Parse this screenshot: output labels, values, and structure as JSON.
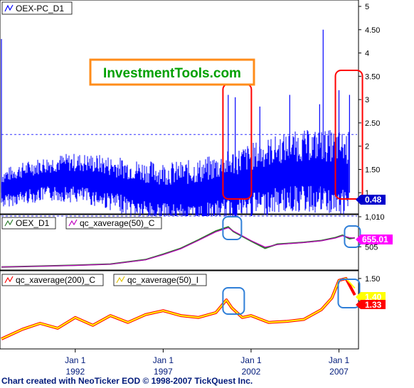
{
  "footer": "Chart created with NeoTicker EOD © 1998-2007 TickQuest Inc.",
  "watermark": "InvestmentTools.com",
  "colors": {
    "pcr": "#0000ff",
    "oex": "#2a7a2a",
    "oex_ma": "#c000c0",
    "ma200": "#ff0000",
    "ma50": "#ffff00",
    "highlight_red": "#ff0000",
    "highlight_blue": "#2f7fd8",
    "watermark_border": "#ff8c1a",
    "watermark_text": "#00a000"
  },
  "chart_data": [
    {
      "type": "line",
      "panel": "top",
      "legend": [
        "OEX-PC_D1"
      ],
      "y_ticks": [
        "5",
        "4.50",
        "4",
        "3.50",
        "3",
        "2.50",
        "2",
        "1.50",
        "1"
      ],
      "ylim": [
        0.5,
        5
      ],
      "reference_lines": [
        2.25,
        0.5
      ],
      "last_value_label": "0.48",
      "series": [
        {
          "name": "OEX-PC_D1",
          "range_band": [
            0.5,
            2.5
          ],
          "spikes": [
            {
              "x": 1987.8,
              "y": 4.3
            },
            {
              "x": 2000.7,
              "y": 3.1
            },
            {
              "x": 2001.1,
              "y": 3.05
            },
            {
              "x": 2002.5,
              "y": 2.85
            },
            {
              "x": 2004.2,
              "y": 3.1
            },
            {
              "x": 2005.9,
              "y": 2.9
            },
            {
              "x": 2006.1,
              "y": 4.5
            },
            {
              "x": 2007.0,
              "y": 3.2
            },
            {
              "x": 2007.6,
              "y": 3.1
            }
          ]
        }
      ]
    },
    {
      "type": "line",
      "panel": "middle",
      "legend": [
        "OEX_D1",
        "qc_xaverage(50)_C"
      ],
      "y_ticks": [
        "1,010",
        "505"
      ],
      "ylim": [
        150,
        1010
      ],
      "last_value_label": "655.01",
      "series": [
        {
          "name": "OEX_D1",
          "x": [
            1987.8,
            1990,
            1992,
            1994,
            1996,
            1997,
            1998,
            1999,
            2000,
            2000.7,
            2001,
            2001.5,
            2002,
            2002.8,
            2003.5,
            2004,
            2005,
            2006,
            2006.8,
            2007.2,
            2007.6,
            2007.9
          ],
          "y": [
            165,
            180,
            195,
            215,
            290,
            380,
            480,
            620,
            770,
            840,
            760,
            680,
            600,
            480,
            550,
            560,
            580,
            610,
            660,
            700,
            640,
            655
          ]
        },
        {
          "name": "qc_xaverage(50)_C",
          "x": [
            1987.8,
            1990,
            1992,
            1994,
            1996,
            1997,
            1998,
            1999,
            2000,
            2000.7,
            2001,
            2001.5,
            2002,
            2002.8,
            2003.5,
            2004,
            2005,
            2006,
            2006.8,
            2007.2,
            2007.6,
            2007.9
          ],
          "y": [
            165,
            178,
            192,
            212,
            285,
            372,
            470,
            610,
            755,
            825,
            770,
            690,
            610,
            500,
            540,
            555,
            575,
            605,
            650,
            690,
            660,
            650
          ]
        }
      ]
    },
    {
      "type": "line",
      "panel": "bottom",
      "legend": [
        "qc_xaverage(200)_C",
        "qc_xaverage(50)_I"
      ],
      "y_ticks": [
        "1.50"
      ],
      "ylim": [
        0.8,
        1.55
      ],
      "last_value_labels": [
        "1.40",
        "1.33"
      ],
      "series": [
        {
          "name": "qc_xaverage(200)_C",
          "x": [
            1987.8,
            1989,
            1990,
            1991,
            1992,
            1993,
            1994,
            1995,
            1996,
            1997,
            1998,
            1999,
            2000,
            2000.6,
            2000.9,
            2001.5,
            2002,
            2003,
            2004,
            2005,
            2006,
            2006.6,
            2007,
            2007.4,
            2007.9
          ],
          "y": [
            0.88,
            0.98,
            1.04,
            0.99,
            1.1,
            1.02,
            1.12,
            1.05,
            1.13,
            1.17,
            1.12,
            1.1,
            1.15,
            1.28,
            1.2,
            1.1,
            1.12,
            1.05,
            1.06,
            1.08,
            1.18,
            1.3,
            1.48,
            1.5,
            1.33
          ]
        },
        {
          "name": "qc_xaverage(50)_I",
          "x": [
            1987.8,
            1989,
            1990,
            1991,
            1992,
            1993,
            1994,
            1995,
            1996,
            1997,
            1998,
            1999,
            2000,
            2000.6,
            2000.9,
            2001.5,
            2002,
            2003,
            2004,
            2005,
            2006,
            2006.6,
            2007,
            2007.4,
            2007.9
          ],
          "y": [
            0.88,
            0.98,
            1.04,
            0.99,
            1.1,
            1.02,
            1.12,
            1.05,
            1.13,
            1.17,
            1.12,
            1.1,
            1.15,
            1.28,
            1.2,
            1.1,
            1.12,
            1.05,
            1.06,
            1.08,
            1.18,
            1.3,
            1.48,
            1.5,
            1.4
          ]
        }
      ]
    }
  ],
  "x_axis": {
    "ticks": [
      {
        "x": 1992,
        "month": "Jan 1",
        "year": "1992"
      },
      {
        "x": 1997,
        "month": "Jan 1",
        "year": "1997"
      },
      {
        "x": 2002,
        "month": "Jan 1",
        "year": "2002"
      },
      {
        "x": 2007,
        "month": "Jan 1",
        "year": "2007"
      }
    ]
  }
}
